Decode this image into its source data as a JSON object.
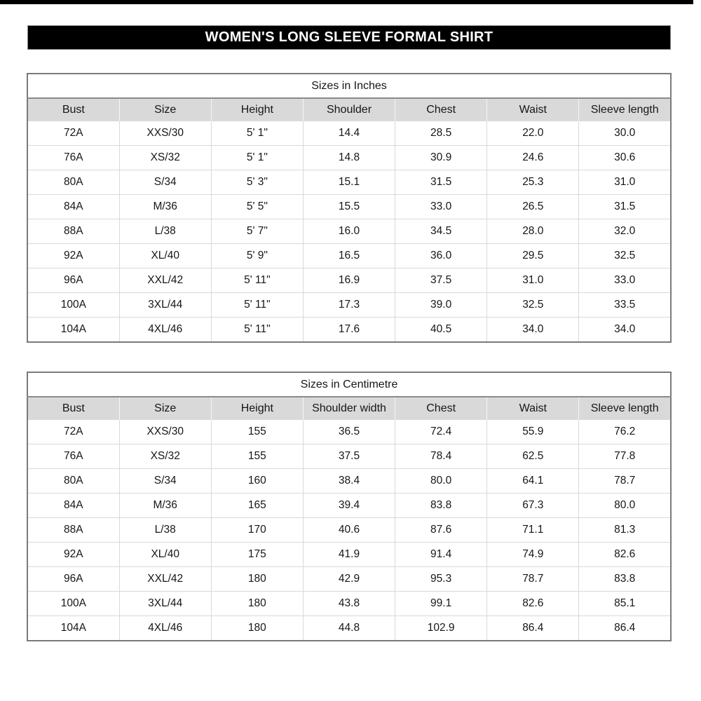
{
  "page": {
    "title": "WOMEN'S LONG SLEEVE FORMAL SHIRT"
  },
  "colors": {
    "banner_bg": "#000000",
    "banner_text": "#ffffff",
    "header_row_bg": "#d9d9d9",
    "grid_line": "#d9d9d9",
    "outer_border": "#7a7a7a",
    "text": "#161616"
  },
  "tables": [
    {
      "title": "Sizes in Inches",
      "columns": [
        "Bust",
        "Size",
        "Height",
        "Shoulder",
        "Chest",
        "Waist",
        "Sleeve length"
      ],
      "rows": [
        [
          "72A",
          "XXS/30",
          "5' 1\"",
          "14.4",
          "28.5",
          "22.0",
          "30.0"
        ],
        [
          "76A",
          "XS/32",
          "5' 1\"",
          "14.8",
          "30.9",
          "24.6",
          "30.6"
        ],
        [
          "80A",
          "S/34",
          "5' 3\"",
          "15.1",
          "31.5",
          "25.3",
          "31.0"
        ],
        [
          "84A",
          "M/36",
          "5' 5\"",
          "15.5",
          "33.0",
          "26.5",
          "31.5"
        ],
        [
          "88A",
          "L/38",
          "5' 7\"",
          "16.0",
          "34.5",
          "28.0",
          "32.0"
        ],
        [
          "92A",
          "XL/40",
          "5' 9\"",
          "16.5",
          "36.0",
          "29.5",
          "32.5"
        ],
        [
          "96A",
          "XXL/42",
          "5' 11\"",
          "16.9",
          "37.5",
          "31.0",
          "33.0"
        ],
        [
          "100A",
          "3XL/44",
          "5' 11\"",
          "17.3",
          "39.0",
          "32.5",
          "33.5"
        ],
        [
          "104A",
          "4XL/46",
          "5' 11\"",
          "17.6",
          "40.5",
          "34.0",
          "34.0"
        ]
      ]
    },
    {
      "title": "Sizes in Centimetre",
      "columns": [
        "Bust",
        "Size",
        "Height",
        "Shoulder width",
        "Chest",
        "Waist",
        "Sleeve length"
      ],
      "rows": [
        [
          "72A",
          "XXS/30",
          "155",
          "36.5",
          "72.4",
          "55.9",
          "76.2"
        ],
        [
          "76A",
          "XS/32",
          "155",
          "37.5",
          "78.4",
          "62.5",
          "77.8"
        ],
        [
          "80A",
          "S/34",
          "160",
          "38.4",
          "80.0",
          "64.1",
          "78.7"
        ],
        [
          "84A",
          "M/36",
          "165",
          "39.4",
          "83.8",
          "67.3",
          "80.0"
        ],
        [
          "88A",
          "L/38",
          "170",
          "40.6",
          "87.6",
          "71.1",
          "81.3"
        ],
        [
          "92A",
          "XL/40",
          "175",
          "41.9",
          "91.4",
          "74.9",
          "82.6"
        ],
        [
          "96A",
          "XXL/42",
          "180",
          "42.9",
          "95.3",
          "78.7",
          "83.8"
        ],
        [
          "100A",
          "3XL/44",
          "180",
          "43.8",
          "99.1",
          "82.6",
          "85.1"
        ],
        [
          "104A",
          "4XL/46",
          "180",
          "44.8",
          "102.9",
          "86.4",
          "86.4"
        ]
      ]
    }
  ]
}
